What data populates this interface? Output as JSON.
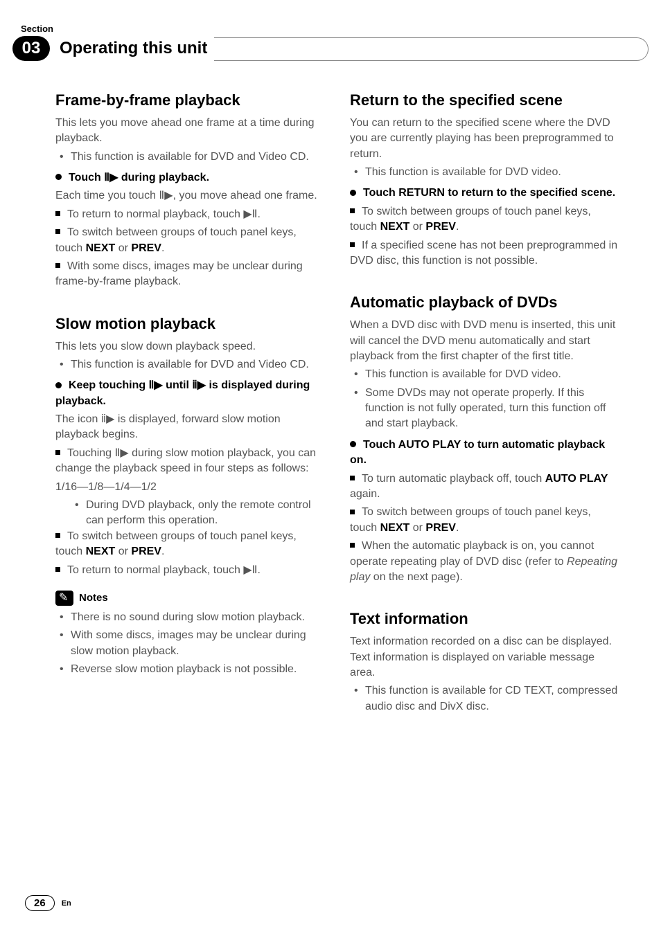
{
  "header": {
    "section_label": "Section",
    "chapter_number": "03",
    "chapter_title": "Operating this unit"
  },
  "left_col": {
    "s1": {
      "title": "Frame-by-frame playback",
      "intro": "This lets you move ahead one frame at a time during playback.",
      "b1": "This function is available for DVD and Video CD.",
      "step_head": "Touch Ⅱ▶ during playback.",
      "step_body": "Each time you touch Ⅱ▶, you move ahead one frame.",
      "n1": "To return to normal playback, touch ▶Ⅱ.",
      "n2_a": "To switch between groups of touch panel keys, touch ",
      "n2_b": "NEXT",
      "n2_c": " or ",
      "n2_d": "PREV",
      "n2_e": ".",
      "n3": "With some discs, images may be unclear during frame-by-frame playback."
    },
    "s2": {
      "title": "Slow motion playback",
      "intro": "This lets you slow down playback speed.",
      "b1": "This function is available for DVD and Video CD.",
      "step_head": "Keep touching Ⅱ▶ until ⅱ▶ is displayed during playback.",
      "step_body": "The icon ⅱ▶ is displayed, forward slow motion playback begins.",
      "n1": "Touching Ⅱ▶ during slow motion playback, you can change the playback speed in four steps as follows:",
      "speeds": "1/16—1/8—1/4—1/2",
      "nb1": "During DVD playback, only the remote control can perform this operation.",
      "n2_a": "To switch between groups of touch panel keys, touch ",
      "n2_b": "NEXT",
      "n2_c": " or ",
      "n2_d": "PREV",
      "n2_e": ".",
      "n3": "To return to normal playback, touch ▶Ⅱ.",
      "notes_label": "Notes",
      "note1": "There is no sound during slow motion playback.",
      "note2": "With some discs, images may be unclear during slow motion playback.",
      "note3": "Reverse slow motion playback is not possible."
    }
  },
  "right_col": {
    "s1": {
      "title": "Return to the specified scene",
      "intro": "You can return to the specified scene where the DVD you are currently playing has been preprogrammed to return.",
      "b1": "This function is available for DVD video.",
      "step_head": "Touch RETURN to return to the specified scene.",
      "n1_a": "To switch between groups of touch panel keys, touch ",
      "n1_b": "NEXT",
      "n1_c": " or ",
      "n1_d": "PREV",
      "n1_e": ".",
      "n2": "If a specified scene has not been preprogrammed in DVD disc, this function is not possible."
    },
    "s2": {
      "title": "Automatic playback of DVDs",
      "intro": "When a DVD disc with DVD menu is inserted, this unit will cancel the DVD menu automatically and start playback from the first chapter of the first title.",
      "b1": "This function is available for DVD video.",
      "b2": "Some DVDs may not operate properly. If this function is not fully operated, turn this function off and start playback.",
      "step_head": "Touch AUTO PLAY to turn automatic playback on.",
      "n1_a": "To turn automatic playback off, touch ",
      "n1_b": "AUTO PLAY",
      "n1_c": " again.",
      "n2_a": "To switch between groups of touch panel keys, touch ",
      "n2_b": "NEXT",
      "n2_c": " or ",
      "n2_d": "PREV",
      "n2_e": ".",
      "n3_a": "When the automatic playback is on, you cannot operate repeating play of DVD disc (refer to ",
      "n3_b": "Repeating play",
      "n3_c": " on the next page)."
    },
    "s3": {
      "title": "Text information",
      "intro": "Text information recorded on a disc can be displayed. Text information is displayed on variable message area.",
      "b1": "This function is available for CD TEXT, compressed audio disc and DivX disc."
    }
  },
  "footer": {
    "page_number": "26",
    "lang": "En"
  }
}
